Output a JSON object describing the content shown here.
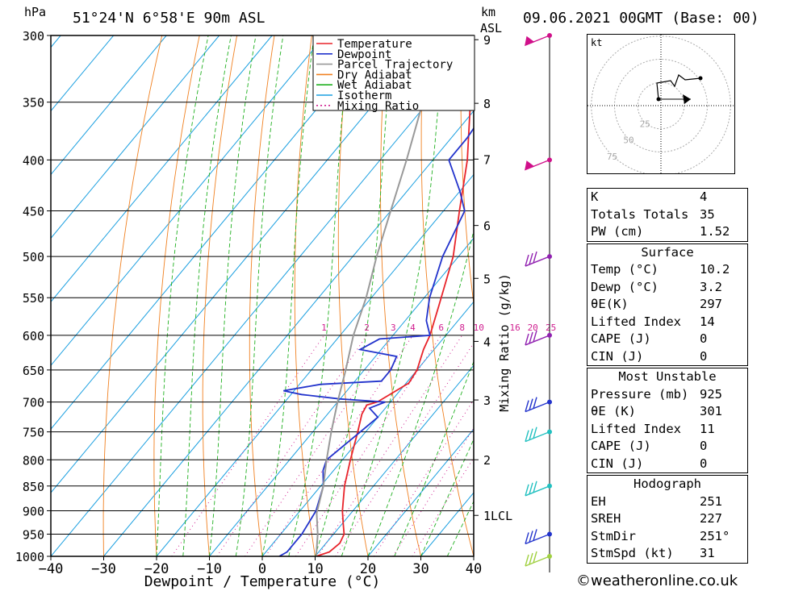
{
  "header": {
    "location": "51°24'N  6°58'E  90m  ASL",
    "datetime": "09.06.2021  00GMT  (Base: 00)",
    "left_unit": "hPa",
    "km_unit": "km",
    "asl_unit": "ASL"
  },
  "chart_data": {
    "type": "line",
    "title": "",
    "xlabel": "Dewpoint / Temperature (°C)",
    "ylabel": "hPa",
    "xlim": [
      -40,
      40
    ],
    "ylim": [
      1000,
      300
    ],
    "x_ticks": [
      -40,
      -30,
      -20,
      -10,
      0,
      10,
      20,
      30,
      40
    ],
    "pressure_levels": [
      300,
      350,
      400,
      450,
      500,
      550,
      600,
      650,
      700,
      750,
      800,
      850,
      900,
      950,
      1000
    ],
    "km_labels": [
      "9",
      "8",
      "7",
      "6",
      "5",
      "4",
      "3",
      "2",
      "1LCL"
    ],
    "mixing_ratio_label": "Mixing Ratio (g/kg)",
    "mixing_ratios": [
      "1",
      "2",
      "3",
      "4",
      "6",
      "8",
      "10",
      "16",
      "20",
      "25"
    ],
    "legend": [
      "Temperature",
      "Dewpoint",
      "Parcel Trajectory",
      "Dry Adiabat",
      "Wet Adiabat",
      "Isotherm",
      "Mixing Ratio"
    ],
    "legend_position": "top-right",
    "series": [
      {
        "name": "Temperature",
        "color": "#e8232a",
        "points": [
          [
            1000,
            10.2
          ],
          [
            990,
            12
          ],
          [
            970,
            12.6
          ],
          [
            950,
            12
          ],
          [
            925,
            10
          ],
          [
            900,
            8
          ],
          [
            850,
            4.5
          ],
          [
            800,
            1.5
          ],
          [
            750,
            -1.5
          ],
          [
            720,
            -3.5
          ],
          [
            705,
            -4
          ],
          [
            700,
            -2.5
          ],
          [
            690,
            -1.5
          ],
          [
            670,
            0.5
          ],
          [
            650,
            0
          ],
          [
            620,
            -2
          ],
          [
            600,
            -3
          ],
          [
            560,
            -6
          ],
          [
            500,
            -11
          ],
          [
            450,
            -17
          ],
          [
            400,
            -23.5
          ],
          [
            350,
            -32
          ],
          [
            300,
            -40
          ]
        ]
      },
      {
        "name": "Dewpoint",
        "color": "#2233cc",
        "points": [
          [
            1000,
            3.2
          ],
          [
            990,
            4
          ],
          [
            950,
            4
          ],
          [
            900,
            3
          ],
          [
            850,
            0.5
          ],
          [
            820,
            -2
          ],
          [
            800,
            -3
          ],
          [
            750,
            -1
          ],
          [
            725,
            0
          ],
          [
            710,
            -3
          ],
          [
            700,
            -1
          ],
          [
            695,
            -10
          ],
          [
            688,
            -18
          ],
          [
            682,
            -22
          ],
          [
            672,
            -16
          ],
          [
            667,
            -5
          ],
          [
            650,
            -5
          ],
          [
            630,
            -6
          ],
          [
            625,
            -10
          ],
          [
            620,
            -14
          ],
          [
            605,
            -12
          ],
          [
            600,
            -3
          ],
          [
            580,
            -6
          ],
          [
            550,
            -9
          ],
          [
            500,
            -13
          ],
          [
            450,
            -16
          ],
          [
            430,
            -20
          ],
          [
            400,
            -27
          ],
          [
            380,
            -27
          ],
          [
            350,
            -28
          ],
          [
            330,
            -30
          ],
          [
            315,
            -27
          ],
          [
            300,
            -30
          ]
        ]
      },
      {
        "name": "Parcel Trajectory",
        "color": "#999999",
        "points": [
          [
            1000,
            10.2
          ],
          [
            950,
            7
          ],
          [
            905,
            3.5
          ],
          [
            850,
            0.5
          ],
          [
            800,
            -3
          ],
          [
            750,
            -6.5
          ],
          [
            700,
            -10
          ],
          [
            650,
            -13.5
          ],
          [
            600,
            -17.5
          ],
          [
            550,
            -21
          ],
          [
            500,
            -25.5
          ],
          [
            450,
            -30
          ],
          [
            400,
            -35
          ],
          [
            350,
            -41
          ],
          [
            300,
            -47
          ]
        ]
      }
    ],
    "wind_barbs_levels": [
      300,
      400,
      500,
      600,
      700,
      750,
      850,
      950,
      1000
    ]
  },
  "hodograph": {
    "unit": "kt",
    "rings": [
      "25",
      "50",
      "75"
    ]
  },
  "indices": {
    "block1": [
      {
        "label": "K",
        "value": "4"
      },
      {
        "label": "Totals Totals",
        "value": "35"
      },
      {
        "label": "PW (cm)",
        "value": "1.52"
      }
    ],
    "surface_title": "Surface",
    "surface": [
      {
        "label": "Temp (°C)",
        "value": "10.2"
      },
      {
        "label": "Dewp (°C)",
        "value": "3.2"
      },
      {
        "label": "θE(K)",
        "value": "297"
      },
      {
        "label": "Lifted Index",
        "value": "14"
      },
      {
        "label": "CAPE (J)",
        "value": "0"
      },
      {
        "label": "CIN (J)",
        "value": "0"
      }
    ],
    "mu_title": "Most Unstable",
    "mu": [
      {
        "label": "Pressure (mb)",
        "value": "925"
      },
      {
        "label": "θE (K)",
        "value": "301"
      },
      {
        "label": "Lifted Index",
        "value": "11"
      },
      {
        "label": "CAPE (J)",
        "value": "0"
      },
      {
        "label": "CIN (J)",
        "value": "0"
      }
    ],
    "hodo_title": "Hodograph",
    "hodo": [
      {
        "label": "EH",
        "value": "251"
      },
      {
        "label": "SREH",
        "value": "227"
      },
      {
        "label": "StmDir",
        "value": "251°"
      },
      {
        "label": "StmSpd (kt)",
        "value": "31"
      }
    ]
  },
  "footer": "©weatheronline.co.uk"
}
